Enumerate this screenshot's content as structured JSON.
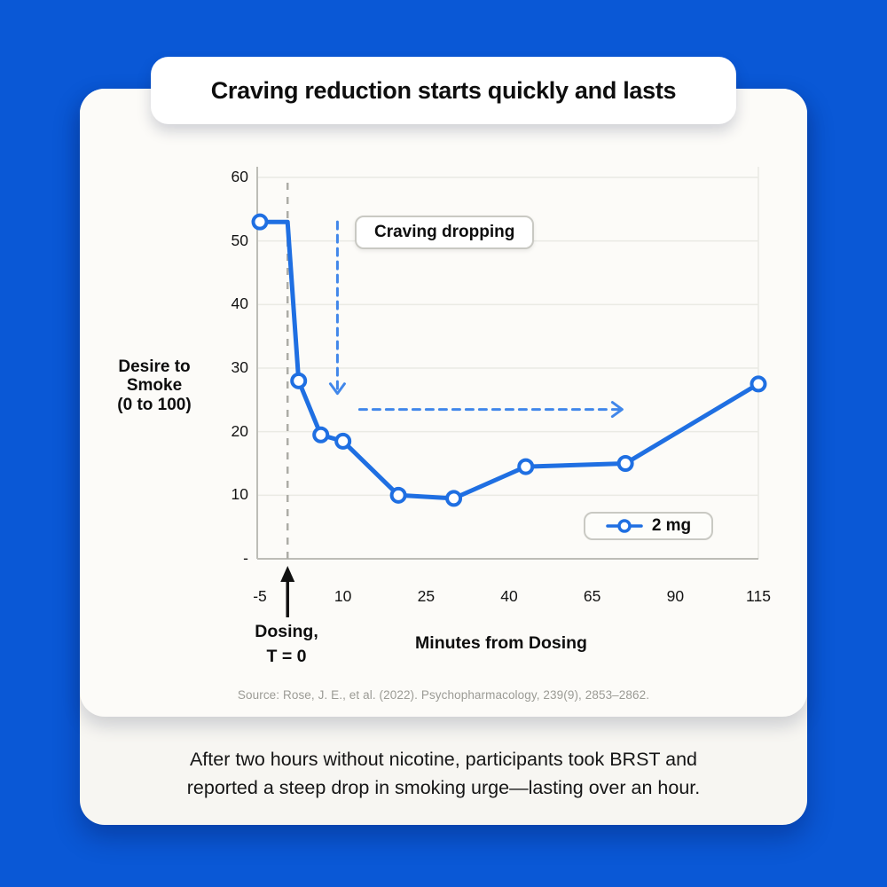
{
  "title": "Craving reduction starts quickly and lasts",
  "caption": {
    "line1": "After two hours without nicotine, participants took BRST and",
    "line2": "reported a steep drop in smoking urge—lasting over an hour."
  },
  "chart_data": {
    "type": "line",
    "title": "Craving reduction starts quickly and lasts",
    "xlabel": "Minutes from Dosing",
    "ylabel": "Desire to Smoke (0 to 100)",
    "ylabel_lines": [
      "Desire to",
      "Smoke",
      "(0 to 100)"
    ],
    "x_ticks": [
      -5,
      10,
      25,
      40,
      65,
      90,
      115
    ],
    "y_ticks": [
      60,
      50,
      40,
      30,
      20,
      10,
      0
    ],
    "y_tick_labels": [
      "60",
      "50",
      "40",
      "30",
      "20",
      "10",
      "-"
    ],
    "ylim": [
      0,
      60
    ],
    "grid": true,
    "series": [
      {
        "name": "2 mg",
        "points": [
          {
            "x": -5,
            "y": 53,
            "marker": true
          },
          {
            "x": 0,
            "y": 53,
            "marker": false
          },
          {
            "x": 2,
            "y": 28,
            "marker": true
          },
          {
            "x": 6,
            "y": 19.5,
            "marker": true
          },
          {
            "x": 10,
            "y": 18.5,
            "marker": true
          },
          {
            "x": 20,
            "y": 10,
            "marker": true
          },
          {
            "x": 30,
            "y": 9.5,
            "marker": true
          },
          {
            "x": 45,
            "y": 14.5,
            "marker": true
          },
          {
            "x": 75,
            "y": 15,
            "marker": true
          },
          {
            "x": 115,
            "y": 27.5,
            "marker": true
          }
        ]
      }
    ],
    "annotations": {
      "craving_label": "Craving dropping",
      "dosing_label_line1": "Dosing,",
      "dosing_label_line2": "T = 0",
      "dosing_x": 0,
      "arrow_down": {
        "x": 9,
        "y_from": 53,
        "y_to": 26
      },
      "arrow_right": {
        "y": 23.5,
        "x_from": 13,
        "x_to": 74
      }
    },
    "legend": {
      "label": "2 mg",
      "position": "lower right"
    },
    "source": "Source: Rose, J. E., et al. (2022). Psychopharmacology, 239(9), 2853–2862."
  },
  "colors": {
    "background": "#0A58D6",
    "line": "#1F6FE2",
    "arrow": "#4187EA",
    "dosing_line": "#ACACA6",
    "axis": "#BDBDB7",
    "grid": "#EAEAE4",
    "card": "#FCFBF8",
    "border": "#C9C9C3",
    "text": "#0E0E0E",
    "source_text": "#9B9B95"
  }
}
